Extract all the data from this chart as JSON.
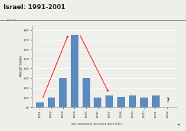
{
  "title": "Israel: 1991-2001",
  "ylabel": "Retail Sales",
  "yunits": "($mm)",
  "years": [
    1991,
    1992,
    1993,
    1994,
    1995,
    1996,
    1997,
    1998,
    1999,
    2000,
    2001,
    2002
  ],
  "values": [
    5,
    10,
    30,
    75,
    30,
    10,
    12,
    11,
    12,
    10,
    12,
    null
  ],
  "bar_color": "#5b8bbf",
  "ylim": [
    0,
    85
  ],
  "yticks": [
    0,
    10,
    20,
    30,
    40,
    50,
    60,
    70,
    80
  ],
  "ytick_labels": [
    "$0",
    "$10",
    "$20",
    "$30",
    "$40",
    "$50",
    "$60",
    "$70",
    "$80"
  ],
  "note_text": "Not separately disclosed after 2001",
  "bg_color": "#eeeeea",
  "title_color": "#1a1a1a"
}
